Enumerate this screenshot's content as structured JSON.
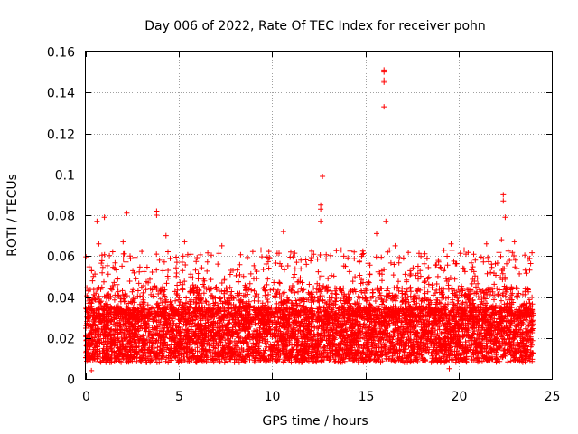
{
  "chart_data": {
    "type": "scatter",
    "title": "Day 006 of 2022, Rate Of TEC Index for receiver pohn",
    "xlabel": "GPS time / hours",
    "ylabel": "ROTI / TECUs",
    "xlim": [
      0,
      25
    ],
    "ylim": [
      0,
      0.16
    ],
    "xticks": [
      0,
      5,
      10,
      15,
      20,
      25
    ],
    "yticks": [
      0,
      0.02,
      0.04,
      0.06,
      0.08,
      0.1,
      0.12,
      0.14,
      0.16
    ],
    "xtick_labels": [
      "0",
      "5",
      "10",
      "15",
      "20",
      "25"
    ],
    "ytick_labels": [
      "0",
      "0.02",
      "0.04",
      "0.06",
      "0.08",
      "0.1",
      "0.12",
      "0.14",
      "0.16"
    ],
    "grid": true,
    "marker": "+",
    "color": "#ff0000",
    "series": [
      {
        "name": "ROTI",
        "x_range": [
          0,
          24
        ],
        "typical_band": [
          0.005,
          0.04
        ],
        "notable_points": [
          {
            "x": 16.0,
            "y": 0.151
          },
          {
            "x": 16.0,
            "y": 0.15
          },
          {
            "x": 16.0,
            "y": 0.146
          },
          {
            "x": 16.0,
            "y": 0.145
          },
          {
            "x": 16.0,
            "y": 0.133
          },
          {
            "x": 12.7,
            "y": 0.099
          },
          {
            "x": 22.4,
            "y": 0.09
          },
          {
            "x": 22.4,
            "y": 0.087
          },
          {
            "x": 12.6,
            "y": 0.085
          },
          {
            "x": 12.6,
            "y": 0.083
          },
          {
            "x": 2.2,
            "y": 0.081
          },
          {
            "x": 3.8,
            "y": 0.082
          },
          {
            "x": 3.8,
            "y": 0.08
          },
          {
            "x": 1.0,
            "y": 0.079
          },
          {
            "x": 0.6,
            "y": 0.077
          },
          {
            "x": 16.1,
            "y": 0.077
          },
          {
            "x": 12.6,
            "y": 0.077
          },
          {
            "x": 22.5,
            "y": 0.079
          },
          {
            "x": 10.6,
            "y": 0.072
          },
          {
            "x": 15.6,
            "y": 0.071
          },
          {
            "x": 4.3,
            "y": 0.07
          },
          {
            "x": 22.3,
            "y": 0.068
          },
          {
            "x": 23.0,
            "y": 0.067
          },
          {
            "x": 19.6,
            "y": 0.066
          },
          {
            "x": 16.6,
            "y": 0.065
          },
          {
            "x": 5.3,
            "y": 0.067
          },
          {
            "x": 2.0,
            "y": 0.067
          },
          {
            "x": 0.7,
            "y": 0.066
          },
          {
            "x": 21.5,
            "y": 0.066
          },
          {
            "x": 20.3,
            "y": 0.063
          },
          {
            "x": 7.3,
            "y": 0.065
          },
          {
            "x": 9.4,
            "y": 0.063
          },
          {
            "x": 11.0,
            "y": 0.062
          },
          {
            "x": 13.7,
            "y": 0.063
          },
          {
            "x": 14.4,
            "y": 0.062
          },
          {
            "x": 19.5,
            "y": 0.005
          },
          {
            "x": 0.3,
            "y": 0.004
          }
        ]
      }
    ]
  }
}
